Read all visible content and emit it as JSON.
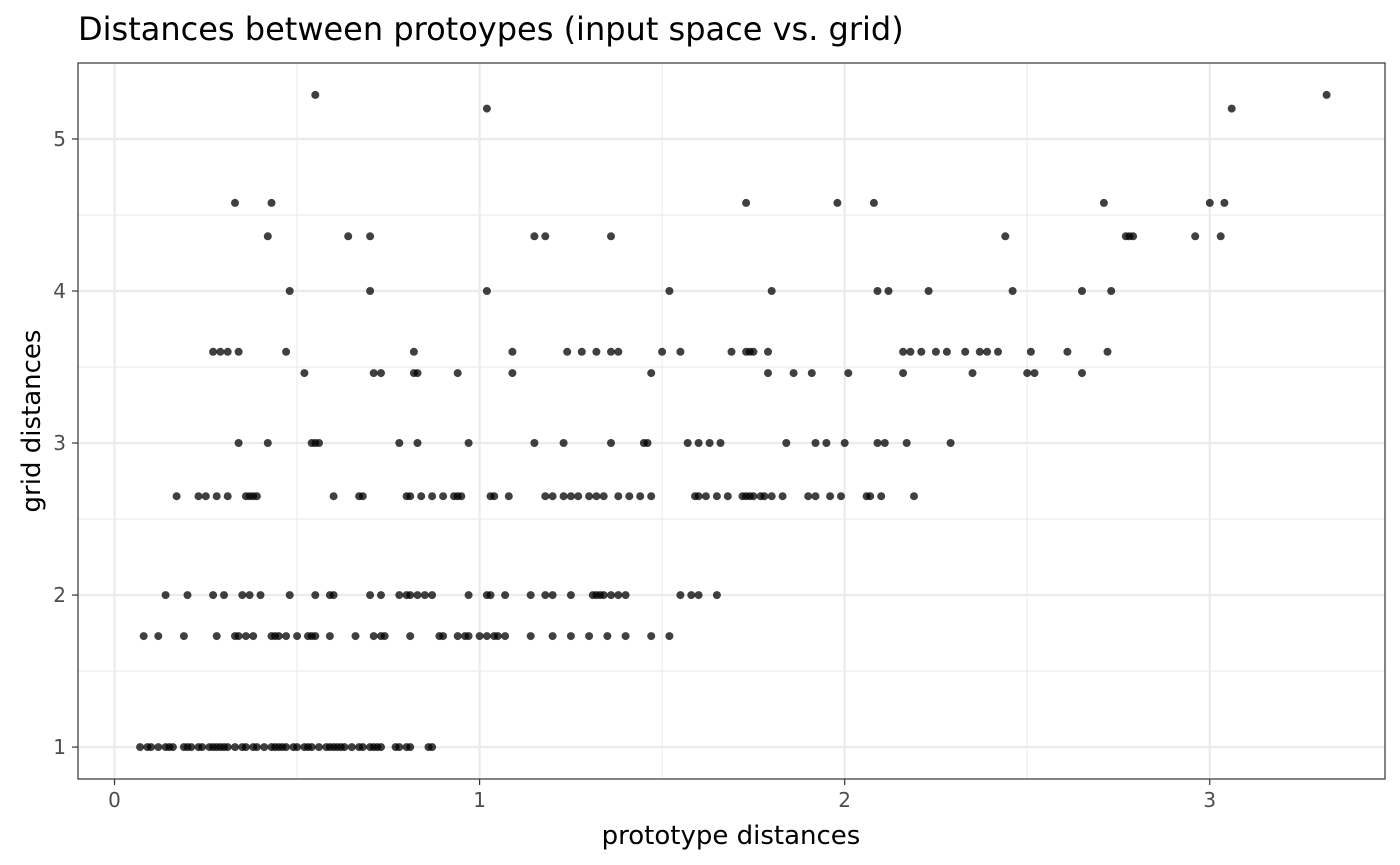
{
  "chart_data": {
    "type": "scatter",
    "title": "Distances between protoypes (input space vs. grid)",
    "xlabel": "prototype distances",
    "ylabel": "grid distances",
    "xlim": [
      -0.1,
      3.48
    ],
    "ylim": [
      0.79,
      5.5
    ],
    "x_ticks": [
      0,
      1,
      2,
      3
    ],
    "y_ticks": [
      1,
      2,
      3,
      4,
      5
    ],
    "x_minor_ticks": [
      0.5,
      1.5,
      2.5
    ],
    "y_minor_ticks": [
      1.5,
      2.5,
      3.5,
      4.5
    ],
    "grid": true,
    "point_color": "#000000",
    "point_opacity": 0.75,
    "series": [
      {
        "points": [
          [
            0.07,
            1
          ],
          [
            0.09,
            1
          ],
          [
            0.1,
            1
          ],
          [
            0.12,
            1
          ],
          [
            0.14,
            1
          ],
          [
            0.15,
            1
          ],
          [
            0.16,
            1
          ],
          [
            0.19,
            1
          ],
          [
            0.2,
            1
          ],
          [
            0.21,
            1
          ],
          [
            0.23,
            1
          ],
          [
            0.24,
            1
          ],
          [
            0.26,
            1
          ],
          [
            0.27,
            1
          ],
          [
            0.28,
            1
          ],
          [
            0.29,
            1
          ],
          [
            0.3,
            1
          ],
          [
            0.31,
            1
          ],
          [
            0.33,
            1
          ],
          [
            0.35,
            1
          ],
          [
            0.36,
            1
          ],
          [
            0.38,
            1
          ],
          [
            0.39,
            1
          ],
          [
            0.41,
            1
          ],
          [
            0.43,
            1
          ],
          [
            0.44,
            1
          ],
          [
            0.45,
            1
          ],
          [
            0.46,
            1
          ],
          [
            0.47,
            1
          ],
          [
            0.49,
            1
          ],
          [
            0.5,
            1
          ],
          [
            0.52,
            1
          ],
          [
            0.53,
            1
          ],
          [
            0.54,
            1
          ],
          [
            0.56,
            1
          ],
          [
            0.58,
            1
          ],
          [
            0.59,
            1
          ],
          [
            0.6,
            1
          ],
          [
            0.61,
            1
          ],
          [
            0.62,
            1
          ],
          [
            0.63,
            1
          ],
          [
            0.65,
            1
          ],
          [
            0.67,
            1
          ],
          [
            0.68,
            1
          ],
          [
            0.7,
            1
          ],
          [
            0.71,
            1
          ],
          [
            0.72,
            1
          ],
          [
            0.73,
            1
          ],
          [
            0.77,
            1
          ],
          [
            0.78,
            1
          ],
          [
            0.8,
            1
          ],
          [
            0.81,
            1
          ],
          [
            0.86,
            1
          ],
          [
            0.87,
            1
          ],
          [
            0.08,
            1.73
          ],
          [
            0.12,
            1.73
          ],
          [
            0.19,
            1.73
          ],
          [
            0.28,
            1.73
          ],
          [
            0.33,
            1.73
          ],
          [
            0.34,
            1.73
          ],
          [
            0.36,
            1.73
          ],
          [
            0.38,
            1.73
          ],
          [
            0.43,
            1.73
          ],
          [
            0.44,
            1.73
          ],
          [
            0.45,
            1.73
          ],
          [
            0.47,
            1.73
          ],
          [
            0.5,
            1.73
          ],
          [
            0.53,
            1.73
          ],
          [
            0.54,
            1.73
          ],
          [
            0.55,
            1.73
          ],
          [
            0.59,
            1.73
          ],
          [
            0.66,
            1.73
          ],
          [
            0.71,
            1.73
          ],
          [
            0.73,
            1.73
          ],
          [
            0.74,
            1.73
          ],
          [
            0.81,
            1.73
          ],
          [
            0.89,
            1.73
          ],
          [
            0.9,
            1.73
          ],
          [
            0.94,
            1.73
          ],
          [
            0.96,
            1.73
          ],
          [
            0.97,
            1.73
          ],
          [
            1.0,
            1.73
          ],
          [
            1.02,
            1.73
          ],
          [
            1.04,
            1.73
          ],
          [
            1.05,
            1.73
          ],
          [
            1.07,
            1.73
          ],
          [
            1.14,
            1.73
          ],
          [
            1.2,
            1.73
          ],
          [
            1.25,
            1.73
          ],
          [
            1.3,
            1.73
          ],
          [
            1.35,
            1.73
          ],
          [
            1.4,
            1.73
          ],
          [
            1.47,
            1.73
          ],
          [
            1.52,
            1.73
          ],
          [
            0.14,
            2
          ],
          [
            0.2,
            2
          ],
          [
            0.27,
            2
          ],
          [
            0.3,
            2
          ],
          [
            0.35,
            2
          ],
          [
            0.37,
            2
          ],
          [
            0.4,
            2
          ],
          [
            0.48,
            2
          ],
          [
            0.55,
            2
          ],
          [
            0.59,
            2
          ],
          [
            0.6,
            2
          ],
          [
            0.7,
            2
          ],
          [
            0.73,
            2
          ],
          [
            0.78,
            2
          ],
          [
            0.8,
            2
          ],
          [
            0.81,
            2
          ],
          [
            0.83,
            2
          ],
          [
            0.85,
            2
          ],
          [
            0.87,
            2
          ],
          [
            0.97,
            2
          ],
          [
            1.02,
            2
          ],
          [
            1.03,
            2
          ],
          [
            1.07,
            2
          ],
          [
            1.14,
            2
          ],
          [
            1.18,
            2
          ],
          [
            1.2,
            2
          ],
          [
            1.25,
            2
          ],
          [
            1.31,
            2
          ],
          [
            1.32,
            2
          ],
          [
            1.33,
            2
          ],
          [
            1.34,
            2
          ],
          [
            1.36,
            2
          ],
          [
            1.38,
            2
          ],
          [
            1.4,
            2
          ],
          [
            1.55,
            2
          ],
          [
            1.58,
            2
          ],
          [
            1.6,
            2
          ],
          [
            1.65,
            2
          ],
          [
            0.17,
            2.65
          ],
          [
            0.23,
            2.65
          ],
          [
            0.25,
            2.65
          ],
          [
            0.28,
            2.65
          ],
          [
            0.31,
            2.65
          ],
          [
            0.36,
            2.65
          ],
          [
            0.37,
            2.65
          ],
          [
            0.38,
            2.65
          ],
          [
            0.39,
            2.65
          ],
          [
            0.6,
            2.65
          ],
          [
            0.67,
            2.65
          ],
          [
            0.68,
            2.65
          ],
          [
            0.8,
            2.65
          ],
          [
            0.81,
            2.65
          ],
          [
            0.84,
            2.65
          ],
          [
            0.87,
            2.65
          ],
          [
            0.9,
            2.65
          ],
          [
            0.93,
            2.65
          ],
          [
            0.94,
            2.65
          ],
          [
            0.95,
            2.65
          ],
          [
            1.03,
            2.65
          ],
          [
            1.04,
            2.65
          ],
          [
            1.08,
            2.65
          ],
          [
            1.18,
            2.65
          ],
          [
            1.2,
            2.65
          ],
          [
            1.23,
            2.65
          ],
          [
            1.25,
            2.65
          ],
          [
            1.27,
            2.65
          ],
          [
            1.3,
            2.65
          ],
          [
            1.32,
            2.65
          ],
          [
            1.34,
            2.65
          ],
          [
            1.38,
            2.65
          ],
          [
            1.41,
            2.65
          ],
          [
            1.44,
            2.65
          ],
          [
            1.47,
            2.65
          ],
          [
            1.59,
            2.65
          ],
          [
            1.6,
            2.65
          ],
          [
            1.62,
            2.65
          ],
          [
            1.65,
            2.65
          ],
          [
            1.68,
            2.65
          ],
          [
            1.72,
            2.65
          ],
          [
            1.73,
            2.65
          ],
          [
            1.74,
            2.65
          ],
          [
            1.75,
            2.65
          ],
          [
            1.77,
            2.65
          ],
          [
            1.78,
            2.65
          ],
          [
            1.8,
            2.65
          ],
          [
            1.83,
            2.65
          ],
          [
            1.9,
            2.65
          ],
          [
            1.92,
            2.65
          ],
          [
            1.96,
            2.65
          ],
          [
            1.99,
            2.65
          ],
          [
            2.06,
            2.65
          ],
          [
            2.07,
            2.65
          ],
          [
            2.1,
            2.65
          ],
          [
            2.19,
            2.65
          ],
          [
            0.34,
            3
          ],
          [
            0.42,
            3
          ],
          [
            0.54,
            3
          ],
          [
            0.55,
            3
          ],
          [
            0.56,
            3
          ],
          [
            0.78,
            3
          ],
          [
            0.83,
            3
          ],
          [
            0.97,
            3
          ],
          [
            1.15,
            3
          ],
          [
            1.23,
            3
          ],
          [
            1.36,
            3
          ],
          [
            1.45,
            3
          ],
          [
            1.46,
            3
          ],
          [
            1.57,
            3
          ],
          [
            1.6,
            3
          ],
          [
            1.63,
            3
          ],
          [
            1.66,
            3
          ],
          [
            1.84,
            3
          ],
          [
            1.92,
            3
          ],
          [
            1.95,
            3
          ],
          [
            2.0,
            3
          ],
          [
            2.09,
            3
          ],
          [
            2.11,
            3
          ],
          [
            2.17,
            3
          ],
          [
            2.29,
            3
          ],
          [
            0.52,
            3.46
          ],
          [
            0.71,
            3.46
          ],
          [
            0.73,
            3.46
          ],
          [
            0.82,
            3.46
          ],
          [
            0.83,
            3.46
          ],
          [
            0.94,
            3.46
          ],
          [
            1.09,
            3.46
          ],
          [
            1.47,
            3.46
          ],
          [
            1.79,
            3.46
          ],
          [
            1.86,
            3.46
          ],
          [
            1.91,
            3.46
          ],
          [
            2.01,
            3.46
          ],
          [
            2.16,
            3.46
          ],
          [
            2.35,
            3.46
          ],
          [
            2.5,
            3.46
          ],
          [
            2.52,
            3.46
          ],
          [
            2.65,
            3.46
          ],
          [
            0.27,
            3.6
          ],
          [
            0.29,
            3.6
          ],
          [
            0.31,
            3.6
          ],
          [
            0.34,
            3.6
          ],
          [
            0.47,
            3.6
          ],
          [
            0.82,
            3.6
          ],
          [
            1.09,
            3.6
          ],
          [
            1.24,
            3.6
          ],
          [
            1.28,
            3.6
          ],
          [
            1.32,
            3.6
          ],
          [
            1.36,
            3.6
          ],
          [
            1.38,
            3.6
          ],
          [
            1.5,
            3.6
          ],
          [
            1.55,
            3.6
          ],
          [
            1.69,
            3.6
          ],
          [
            1.73,
            3.6
          ],
          [
            1.74,
            3.6
          ],
          [
            1.75,
            3.6
          ],
          [
            1.79,
            3.6
          ],
          [
            2.16,
            3.6
          ],
          [
            2.18,
            3.6
          ],
          [
            2.21,
            3.6
          ],
          [
            2.25,
            3.6
          ],
          [
            2.28,
            3.6
          ],
          [
            2.33,
            3.6
          ],
          [
            2.37,
            3.6
          ],
          [
            2.39,
            3.6
          ],
          [
            2.42,
            3.6
          ],
          [
            2.51,
            3.6
          ],
          [
            2.61,
            3.6
          ],
          [
            2.72,
            3.6
          ],
          [
            0.48,
            4
          ],
          [
            0.7,
            4
          ],
          [
            1.02,
            4
          ],
          [
            1.52,
            4
          ],
          [
            1.8,
            4
          ],
          [
            2.09,
            4
          ],
          [
            2.12,
            4
          ],
          [
            2.23,
            4
          ],
          [
            2.46,
            4
          ],
          [
            2.65,
            4
          ],
          [
            2.73,
            4
          ],
          [
            0.42,
            4.36
          ],
          [
            0.64,
            4.36
          ],
          [
            0.7,
            4.36
          ],
          [
            1.15,
            4.36
          ],
          [
            1.18,
            4.36
          ],
          [
            1.36,
            4.36
          ],
          [
            2.44,
            4.36
          ],
          [
            2.77,
            4.36
          ],
          [
            2.78,
            4.36
          ],
          [
            2.79,
            4.36
          ],
          [
            2.96,
            4.36
          ],
          [
            3.03,
            4.36
          ],
          [
            0.33,
            4.58
          ],
          [
            0.43,
            4.58
          ],
          [
            1.73,
            4.58
          ],
          [
            1.98,
            4.58
          ],
          [
            2.08,
            4.58
          ],
          [
            2.71,
            4.58
          ],
          [
            3.0,
            4.58
          ],
          [
            3.04,
            4.58
          ],
          [
            1.02,
            5.2
          ],
          [
            3.06,
            5.2
          ],
          [
            0.55,
            5.29
          ],
          [
            3.32,
            5.29
          ]
        ]
      }
    ]
  }
}
